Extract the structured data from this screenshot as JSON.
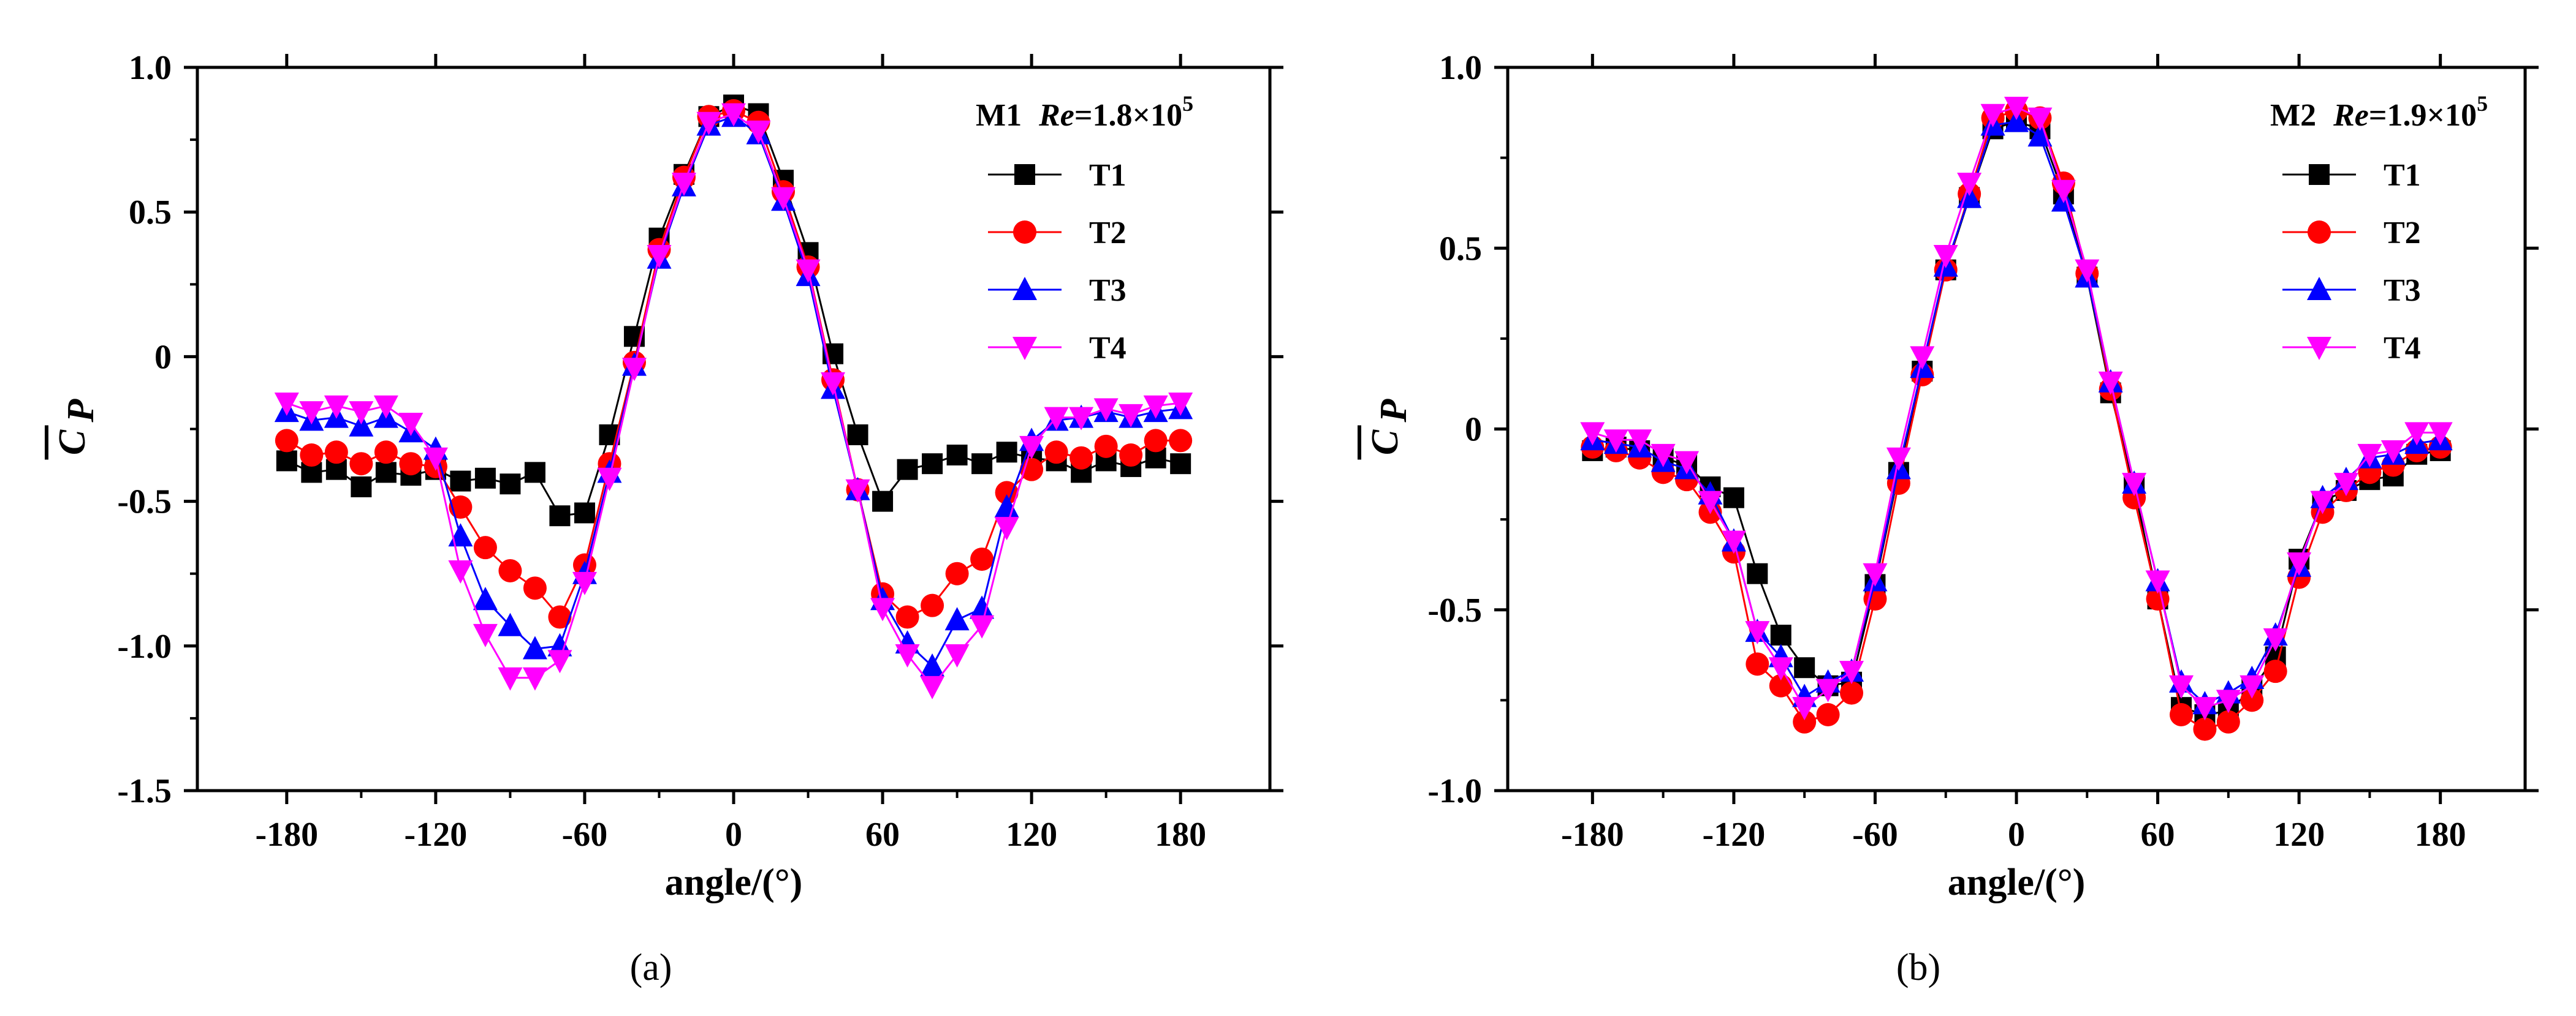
{
  "chart_data": [
    {
      "type": "line",
      "panel_caption": "(a)",
      "model_label": "M1",
      "re_label": "Re=1.8×10",
      "re_var": "Re",
      "re_eq": "=1.8×10",
      "re_exp": "5",
      "xlabel": "angle/(°)",
      "ylabel": "C",
      "ylabel_sub": "P",
      "xlim": [
        -216,
        216
      ],
      "ylim": [
        -1.5,
        1.0
      ],
      "xticks": [
        -180,
        -120,
        -60,
        0,
        60,
        120,
        180
      ],
      "xtick_labels": [
        "-180",
        "-120",
        "-60",
        "0",
        "60",
        "120",
        "180"
      ],
      "yticks": [
        -1.5,
        -1.0,
        -0.5,
        0,
        0.5,
        1.0
      ],
      "ytick_labels": [
        "-1.5",
        "-1.0",
        "-0.5",
        "0",
        "0.5",
        "1.0"
      ],
      "legend_position": "top-right",
      "x": [
        -180,
        -170,
        -160,
        -150,
        -140,
        -130,
        -120,
        -110,
        -100,
        -90,
        -80,
        -70,
        -60,
        -50,
        -40,
        -30,
        -20,
        -10,
        0,
        10,
        20,
        30,
        40,
        50,
        60,
        70,
        80,
        90,
        100,
        110,
        120,
        130,
        140,
        150,
        160,
        170,
        180
      ],
      "series": [
        {
          "name": "T1",
          "color": "#000000",
          "marker": "square",
          "values": [
            -0.36,
            -0.4,
            -0.39,
            -0.45,
            -0.4,
            -0.41,
            -0.39,
            -0.43,
            -0.42,
            -0.44,
            -0.4,
            -0.55,
            -0.54,
            -0.27,
            0.07,
            0.41,
            0.63,
            0.83,
            0.87,
            0.84,
            0.61,
            0.36,
            0.01,
            -0.27,
            -0.5,
            -0.39,
            -0.37,
            -0.34,
            -0.37,
            -0.33,
            -0.35,
            -0.36,
            -0.4,
            -0.36,
            -0.38,
            -0.35,
            -0.37
          ]
        },
        {
          "name": "T2",
          "color": "#ff0000",
          "marker": "circle",
          "values": [
            -0.29,
            -0.34,
            -0.33,
            -0.37,
            -0.33,
            -0.37,
            -0.38,
            -0.52,
            -0.66,
            -0.74,
            -0.8,
            -0.9,
            -0.72,
            -0.37,
            -0.02,
            0.37,
            0.62,
            0.83,
            0.85,
            0.81,
            0.57,
            0.31,
            -0.08,
            -0.46,
            -0.82,
            -0.9,
            -0.86,
            -0.75,
            -0.7,
            -0.47,
            -0.39,
            -0.33,
            -0.35,
            -0.31,
            -0.34,
            -0.29,
            -0.29
          ]
        },
        {
          "name": "T3",
          "color": "#0000ff",
          "marker": "triangle-up",
          "values": [
            -0.19,
            -0.22,
            -0.21,
            -0.24,
            -0.21,
            -0.26,
            -0.32,
            -0.62,
            -0.84,
            -0.93,
            -1.01,
            -1.0,
            -0.75,
            -0.4,
            -0.03,
            0.34,
            0.59,
            0.8,
            0.83,
            0.77,
            0.54,
            0.28,
            -0.11,
            -0.46,
            -0.84,
            -0.99,
            -1.07,
            -0.91,
            -0.87,
            -0.52,
            -0.29,
            -0.22,
            -0.21,
            -0.19,
            -0.21,
            -0.19,
            -0.18
          ]
        },
        {
          "name": "T4",
          "color": "#ff00ff",
          "marker": "triangle-down",
          "values": [
            -0.16,
            -0.19,
            -0.17,
            -0.19,
            -0.17,
            -0.23,
            -0.35,
            -0.74,
            -0.96,
            -1.11,
            -1.11,
            -1.05,
            -0.78,
            -0.42,
            -0.04,
            0.35,
            0.6,
            0.81,
            0.84,
            0.78,
            0.55,
            0.3,
            -0.09,
            -0.46,
            -0.87,
            -1.03,
            -1.14,
            -1.03,
            -0.93,
            -0.59,
            -0.31,
            -0.21,
            -0.21,
            -0.18,
            -0.2,
            -0.17,
            -0.16
          ]
        }
      ]
    },
    {
      "type": "line",
      "panel_caption": "(b)",
      "model_label": "M2",
      "re_label": "Re=1.9×10",
      "re_var": "Re",
      "re_eq": "=1.9×10",
      "re_exp": "5",
      "xlabel": "angle/(°)",
      "ylabel": "C",
      "ylabel_sub": "P",
      "xlim": [
        -216,
        216
      ],
      "ylim": [
        -1.0,
        1.0
      ],
      "xticks": [
        -180,
        -120,
        -60,
        0,
        60,
        120,
        180
      ],
      "xtick_labels": [
        "-180",
        "-120",
        "-60",
        "0",
        "60",
        "120",
        "180"
      ],
      "yticks": [
        -1.0,
        -0.5,
        0,
        0.5,
        1.0
      ],
      "ytick_labels": [
        "-1.0",
        "-0.5",
        "0",
        "0.5",
        "1.0"
      ],
      "legend_position": "top-right",
      "x": [
        -180,
        -170,
        -160,
        -150,
        -140,
        -130,
        -120,
        -110,
        -100,
        -90,
        -80,
        -70,
        -60,
        -50,
        -40,
        -30,
        -20,
        -10,
        0,
        10,
        20,
        30,
        40,
        50,
        60,
        70,
        80,
        90,
        100,
        110,
        120,
        130,
        140,
        150,
        160,
        170,
        180
      ],
      "series": [
        {
          "name": "T1",
          "color": "#000000",
          "marker": "square",
          "values": [
            -0.06,
            -0.05,
            -0.06,
            -0.08,
            -0.1,
            -0.16,
            -0.19,
            -0.4,
            -0.57,
            -0.66,
            -0.71,
            -0.7,
            -0.43,
            -0.12,
            0.16,
            0.44,
            0.64,
            0.83,
            0.85,
            0.83,
            0.65,
            0.42,
            0.1,
            -0.16,
            -0.47,
            -0.77,
            -0.79,
            -0.78,
            -0.72,
            -0.63,
            -0.36,
            -0.2,
            -0.17,
            -0.14,
            -0.13,
            -0.07,
            -0.06
          ]
        },
        {
          "name": "T2",
          "color": "#ff0000",
          "marker": "circle",
          "values": [
            -0.05,
            -0.06,
            -0.08,
            -0.12,
            -0.14,
            -0.23,
            -0.34,
            -0.65,
            -0.71,
            -0.81,
            -0.79,
            -0.73,
            -0.47,
            -0.15,
            0.15,
            0.44,
            0.65,
            0.86,
            0.88,
            0.86,
            0.68,
            0.43,
            0.11,
            -0.19,
            -0.47,
            -0.79,
            -0.83,
            -0.81,
            -0.75,
            -0.67,
            -0.41,
            -0.23,
            -0.17,
            -0.12,
            -0.1,
            -0.06,
            -0.05
          ]
        },
        {
          "name": "T3",
          "color": "#0000ff",
          "marker": "triangle-up",
          "values": [
            -0.03,
            -0.04,
            -0.05,
            -0.09,
            -0.11,
            -0.18,
            -0.31,
            -0.56,
            -0.63,
            -0.74,
            -0.7,
            -0.67,
            -0.42,
            -0.11,
            0.17,
            0.45,
            0.64,
            0.84,
            0.85,
            0.81,
            0.63,
            0.42,
            0.13,
            -0.15,
            -0.42,
            -0.7,
            -0.76,
            -0.73,
            -0.69,
            -0.57,
            -0.38,
            -0.19,
            -0.14,
            -0.08,
            -0.07,
            -0.04,
            -0.03
          ]
        },
        {
          "name": "T4",
          "color": "#ff00ff",
          "marker": "triangle-down",
          "values": [
            -0.01,
            -0.03,
            -0.03,
            -0.07,
            -0.09,
            -0.2,
            -0.31,
            -0.56,
            -0.66,
            -0.77,
            -0.72,
            -0.67,
            -0.4,
            -0.08,
            0.2,
            0.48,
            0.68,
            0.87,
            0.89,
            0.86,
            0.66,
            0.44,
            0.13,
            -0.15,
            -0.42,
            -0.71,
            -0.77,
            -0.75,
            -0.71,
            -0.58,
            -0.37,
            -0.2,
            -0.15,
            -0.07,
            -0.06,
            -0.01,
            -0.01
          ]
        }
      ]
    }
  ]
}
